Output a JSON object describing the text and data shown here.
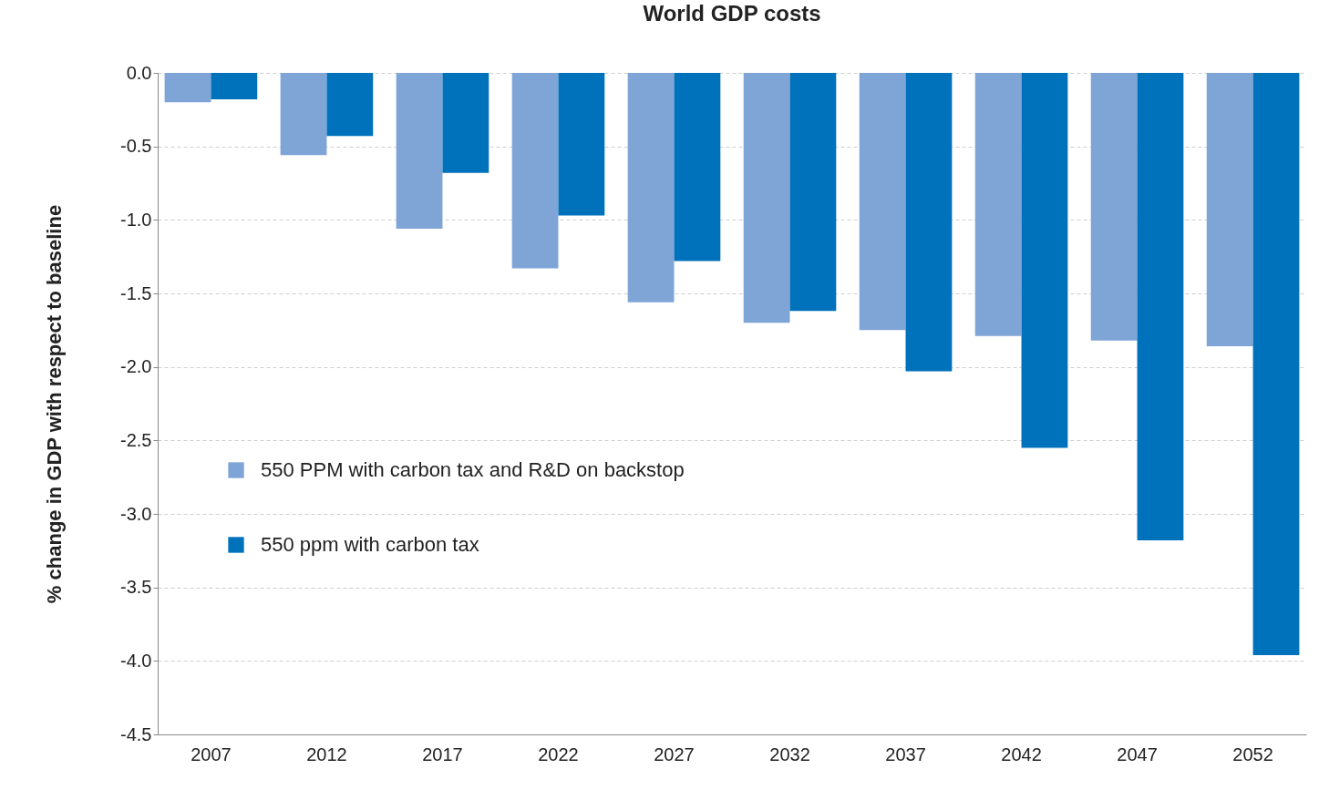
{
  "chart_data": {
    "type": "bar",
    "title": "World GDP costs",
    "ylabel": "% change in GDP with respect to baseline",
    "categories": [
      "2007",
      "2012",
      "2017",
      "2022",
      "2027",
      "2032",
      "2037",
      "2042",
      "2047",
      "2052"
    ],
    "series": [
      {
        "name": "550 PPM with carbon tax and R&D on backstop",
        "color": "#7fa5d6",
        "values": [
          -0.2,
          -0.56,
          -1.06,
          -1.33,
          -1.56,
          -1.7,
          -1.75,
          -1.79,
          -1.82,
          -1.86
        ]
      },
      {
        "name": "550 ppm with carbon tax",
        "color": "#0071bb",
        "values": [
          -0.18,
          -0.43,
          -0.68,
          -0.97,
          -1.28,
          -1.62,
          -2.03,
          -2.55,
          -3.18,
          -3.96
        ]
      }
    ],
    "ylim": [
      -4.5,
      0
    ],
    "yticks": [
      {
        "value": -4.5,
        "label": "-4.5"
      },
      {
        "value": -4,
        "label": "-4.0"
      },
      {
        "value": -3.5,
        "label": "-3.5"
      },
      {
        "value": -3,
        "label": "-3.0"
      },
      {
        "value": -2.5,
        "label": "-2.5"
      },
      {
        "value": -2,
        "label": "-2.0"
      },
      {
        "value": -1.5,
        "label": "-1.5"
      },
      {
        "value": -1,
        "label": "-1.0"
      },
      {
        "value": -0.5,
        "label": "-0.5"
      },
      {
        "value": 0,
        "label": "0.0"
      }
    ],
    "grid": "y",
    "legend": "left"
  }
}
